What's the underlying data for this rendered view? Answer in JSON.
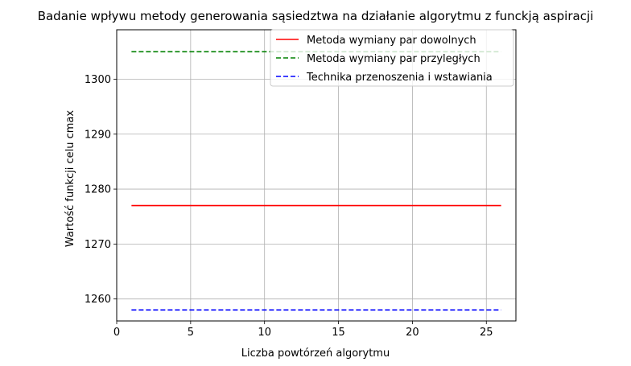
{
  "chart_data": {
    "type": "line",
    "title": "Badanie wpływu metody generowania sąsiedztwa na działanie algorytmu z funckją aspiracji",
    "xlabel": "Liczba powtórzeń algorytmu",
    "ylabel": "Wartość funkcji celu cmax",
    "xlim": [
      0,
      27
    ],
    "ylim": [
      1256,
      1309
    ],
    "xticks": [
      0,
      5,
      10,
      15,
      20,
      25
    ],
    "yticks": [
      1260,
      1270,
      1280,
      1290,
      1300
    ],
    "grid": true,
    "legend_position": "top-right",
    "series": [
      {
        "name": "Metoda wymiany par dowolnych",
        "color": "#ff0000",
        "dash": "solid",
        "x": [
          1,
          26
        ],
        "y": [
          1277,
          1277
        ]
      },
      {
        "name": "Metoda wymiany par przyległych",
        "color": "#008000",
        "dash": "dashed",
        "x": [
          1,
          26
        ],
        "y": [
          1305,
          1305
        ]
      },
      {
        "name": "Technika przenoszenia i wstawiania",
        "color": "#0000ff",
        "dash": "dashed",
        "x": [
          1,
          26
        ],
        "y": [
          1258,
          1258
        ]
      }
    ]
  }
}
